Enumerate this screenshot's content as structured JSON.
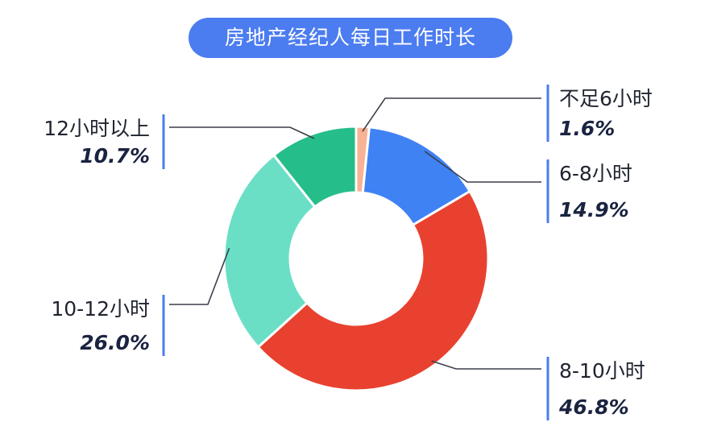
{
  "chart_data": {
    "type": "pie",
    "title": "房地产经纪人每日工作时长",
    "slices": [
      {
        "label": "不足6小时",
        "value": 1.6,
        "display": "1.6%",
        "color": "#f8b295"
      },
      {
        "label": "6-8小时",
        "value": 14.9,
        "display": "14.9%",
        "color": "#3f82f4"
      },
      {
        "label": "8-10小时",
        "value": 46.8,
        "display": "46.8%",
        "color": "#e9412f"
      },
      {
        "label": "10-12小时",
        "value": 26.0,
        "display": "26.0%",
        "color": "#6adfc6"
      },
      {
        "label": "12小时以上",
        "value": 10.7,
        "display": "10.7%",
        "color": "#25bd8a"
      }
    ]
  }
}
